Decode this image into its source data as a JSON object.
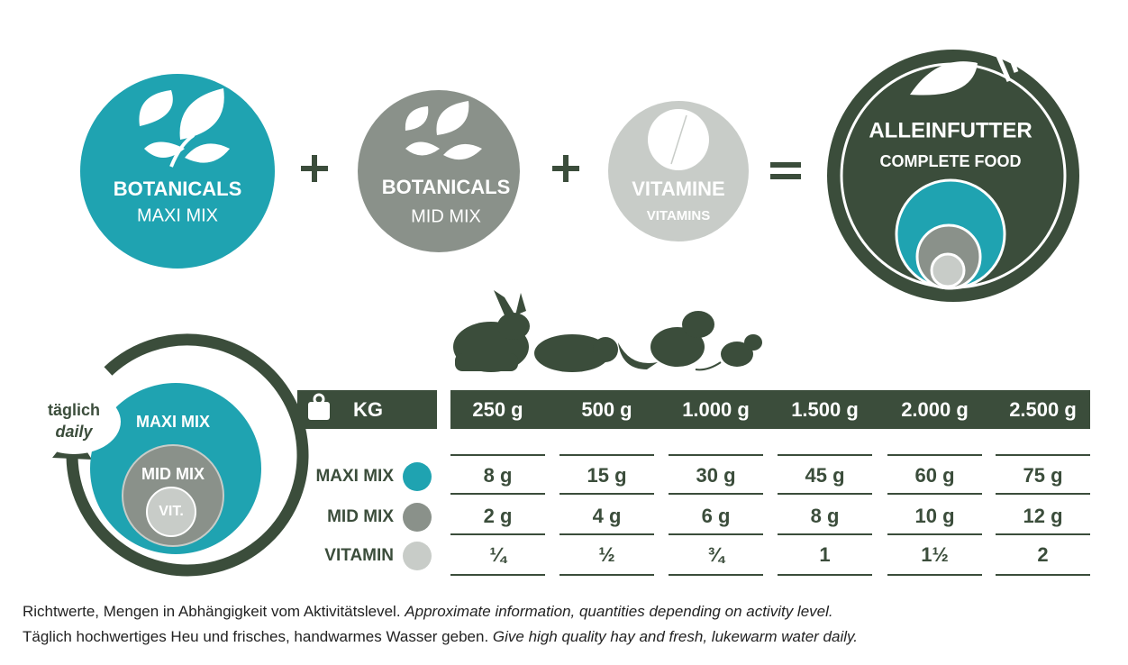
{
  "formula": {
    "items": [
      {
        "title": "BOTANICALS",
        "subtitle": "MAXI MIX"
      },
      {
        "title": "BOTANICALS",
        "subtitle": "MID MIX"
      },
      {
        "title": "VITAMINE",
        "subtitle": "VITAMINS"
      }
    ],
    "result": {
      "title": "ALLEINFUTTER",
      "subtitle": "COMPLETE FOOD"
    }
  },
  "cycle": {
    "label_de": "täglich",
    "label_en": "daily",
    "layers": [
      "MAXI MIX",
      "MID MIX",
      "VIT."
    ]
  },
  "table": {
    "unit": "KG",
    "weights": [
      "250 g",
      "500 g",
      "1.000 g",
      "1.500 g",
      "2.000 g",
      "2.500 g"
    ],
    "rows": [
      {
        "label": "MAXI MIX",
        "cells": [
          "8 g",
          "15 g",
          "30 g",
          "45 g",
          "60 g",
          "75 g"
        ]
      },
      {
        "label": "MID MIX",
        "cells": [
          "2 g",
          "4 g",
          "6 g",
          "8 g",
          "10 g",
          "12 g"
        ]
      },
      {
        "label": "VITAMIN",
        "cells": [
          "¼",
          "½",
          "¾",
          "1",
          "1½",
          "2"
        ]
      }
    ]
  },
  "footer": {
    "lines": [
      {
        "de": "Richtwerte, Mengen in Abhängigkeit vom Aktivitätslevel.",
        "en": "Approximate information, quantities depending on activity level."
      },
      {
        "de": "Täglich hochwertiges Heu und frisches, handwarmes Wasser geben.",
        "en": "Give high quality hay and fresh, lukewarm water daily."
      }
    ]
  }
}
